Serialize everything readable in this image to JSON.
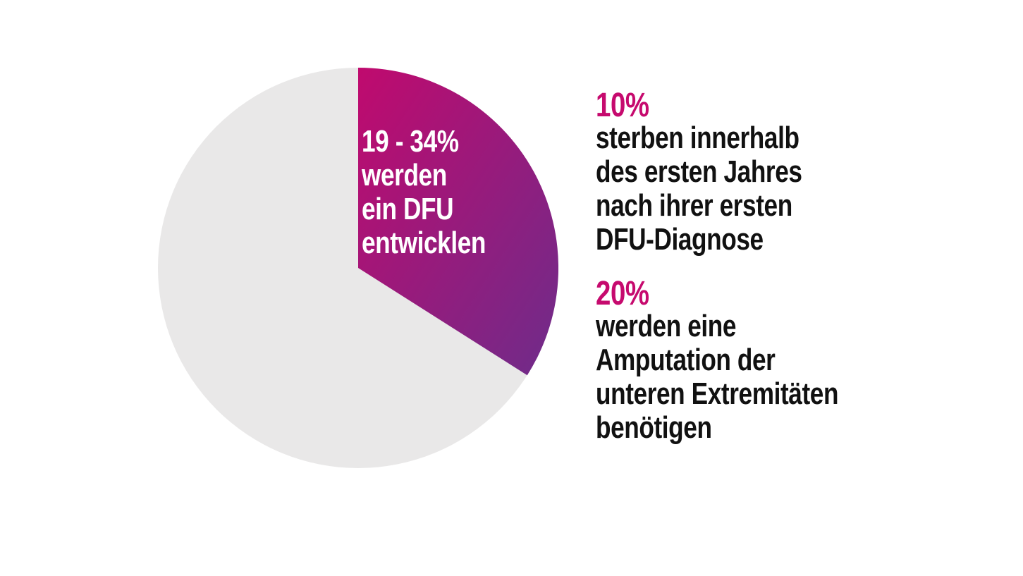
{
  "background": "#FFFFFF",
  "colors": {
    "accent_magenta": "#C60A6E",
    "wedge_gradient_start": "#C00A6E",
    "wedge_gradient_end": "#6E2C8A",
    "pie_remainder_gray": "#E9E8E8",
    "body_text": "#111111",
    "wedge_label_text": "#FFFFFF"
  },
  "chart_data": {
    "type": "pie",
    "title": "",
    "start_angle_deg": 0,
    "direction": "clockwise",
    "legend": "none",
    "slices": [
      {
        "label": "19 - 34% werden ein DFU entwicklen",
        "value": 34,
        "colors": [
          "#C00A6E",
          "#6E2C8A"
        ]
      },
      {
        "label": "",
        "value": 66,
        "color": "#E9E8E8"
      }
    ],
    "wedge_label_lines": [
      "19 - 34%",
      "werden",
      "ein DFU",
      "entwicklen"
    ]
  },
  "stats": [
    {
      "percent": "10%",
      "lines": [
        "sterben innerhalb",
        "des ersten Jahres",
        "nach ihrer ersten",
        "DFU-Diagnose"
      ]
    },
    {
      "percent": "20%",
      "lines": [
        "werden eine",
        "Amputation der",
        "unteren Extremitäten",
        "benötigen"
      ]
    }
  ]
}
